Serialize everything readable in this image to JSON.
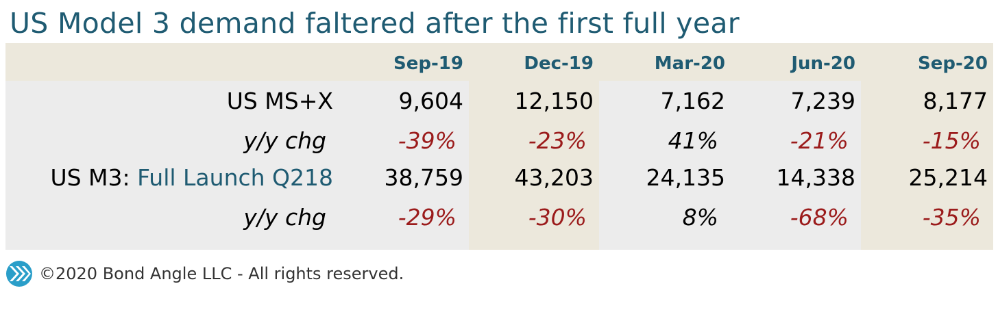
{
  "title": "US Model 3 demand faltered after the first full year",
  "chart_data": {
    "type": "table",
    "columns": [
      "Sep-19",
      "Dec-19",
      "Mar-20",
      "Jun-20",
      "Sep-20"
    ],
    "rows": [
      {
        "label": "US MS+X",
        "label_prefix": "",
        "label_suffix": "",
        "style": "value",
        "cells": [
          "9,604",
          "12,150",
          "7,162",
          "7,239",
          "8,177"
        ],
        "values": [
          9604,
          12150,
          7162,
          7239,
          8177
        ]
      },
      {
        "label": "y/y chg",
        "label_prefix": "",
        "label_suffix": "",
        "style": "pct",
        "cells": [
          "-39%",
          "-23%",
          "41%",
          "-21%",
          "-15%"
        ],
        "values": [
          -39,
          -23,
          41,
          -21,
          -15
        ]
      },
      {
        "label": "US M3: ",
        "label_prefix": "US M3: ",
        "label_suffix": "Full Launch Q218",
        "style": "value",
        "cells": [
          "38,759",
          "43,203",
          "24,135",
          "14,338",
          "25,214"
        ],
        "values": [
          38759,
          43203,
          24135,
          14338,
          25214
        ]
      },
      {
        "label": "y/y chg",
        "label_prefix": "",
        "label_suffix": "",
        "style": "pct",
        "cells": [
          "-29%",
          "-30%",
          "8%",
          "-68%",
          "-35%"
        ],
        "values": [
          -29,
          -30,
          8,
          -68,
          -35
        ]
      }
    ]
  },
  "colors": {
    "title": "#1f5b72",
    "negative": "#9b1b1b",
    "header_band": "#ece8dc",
    "col_tan": "#ece8dc",
    "col_grey": "#ececec"
  },
  "footer": {
    "text": "©2020 Bond Angle LLC - All rights reserved.",
    "logo_icon": "bond-angle-logo"
  }
}
